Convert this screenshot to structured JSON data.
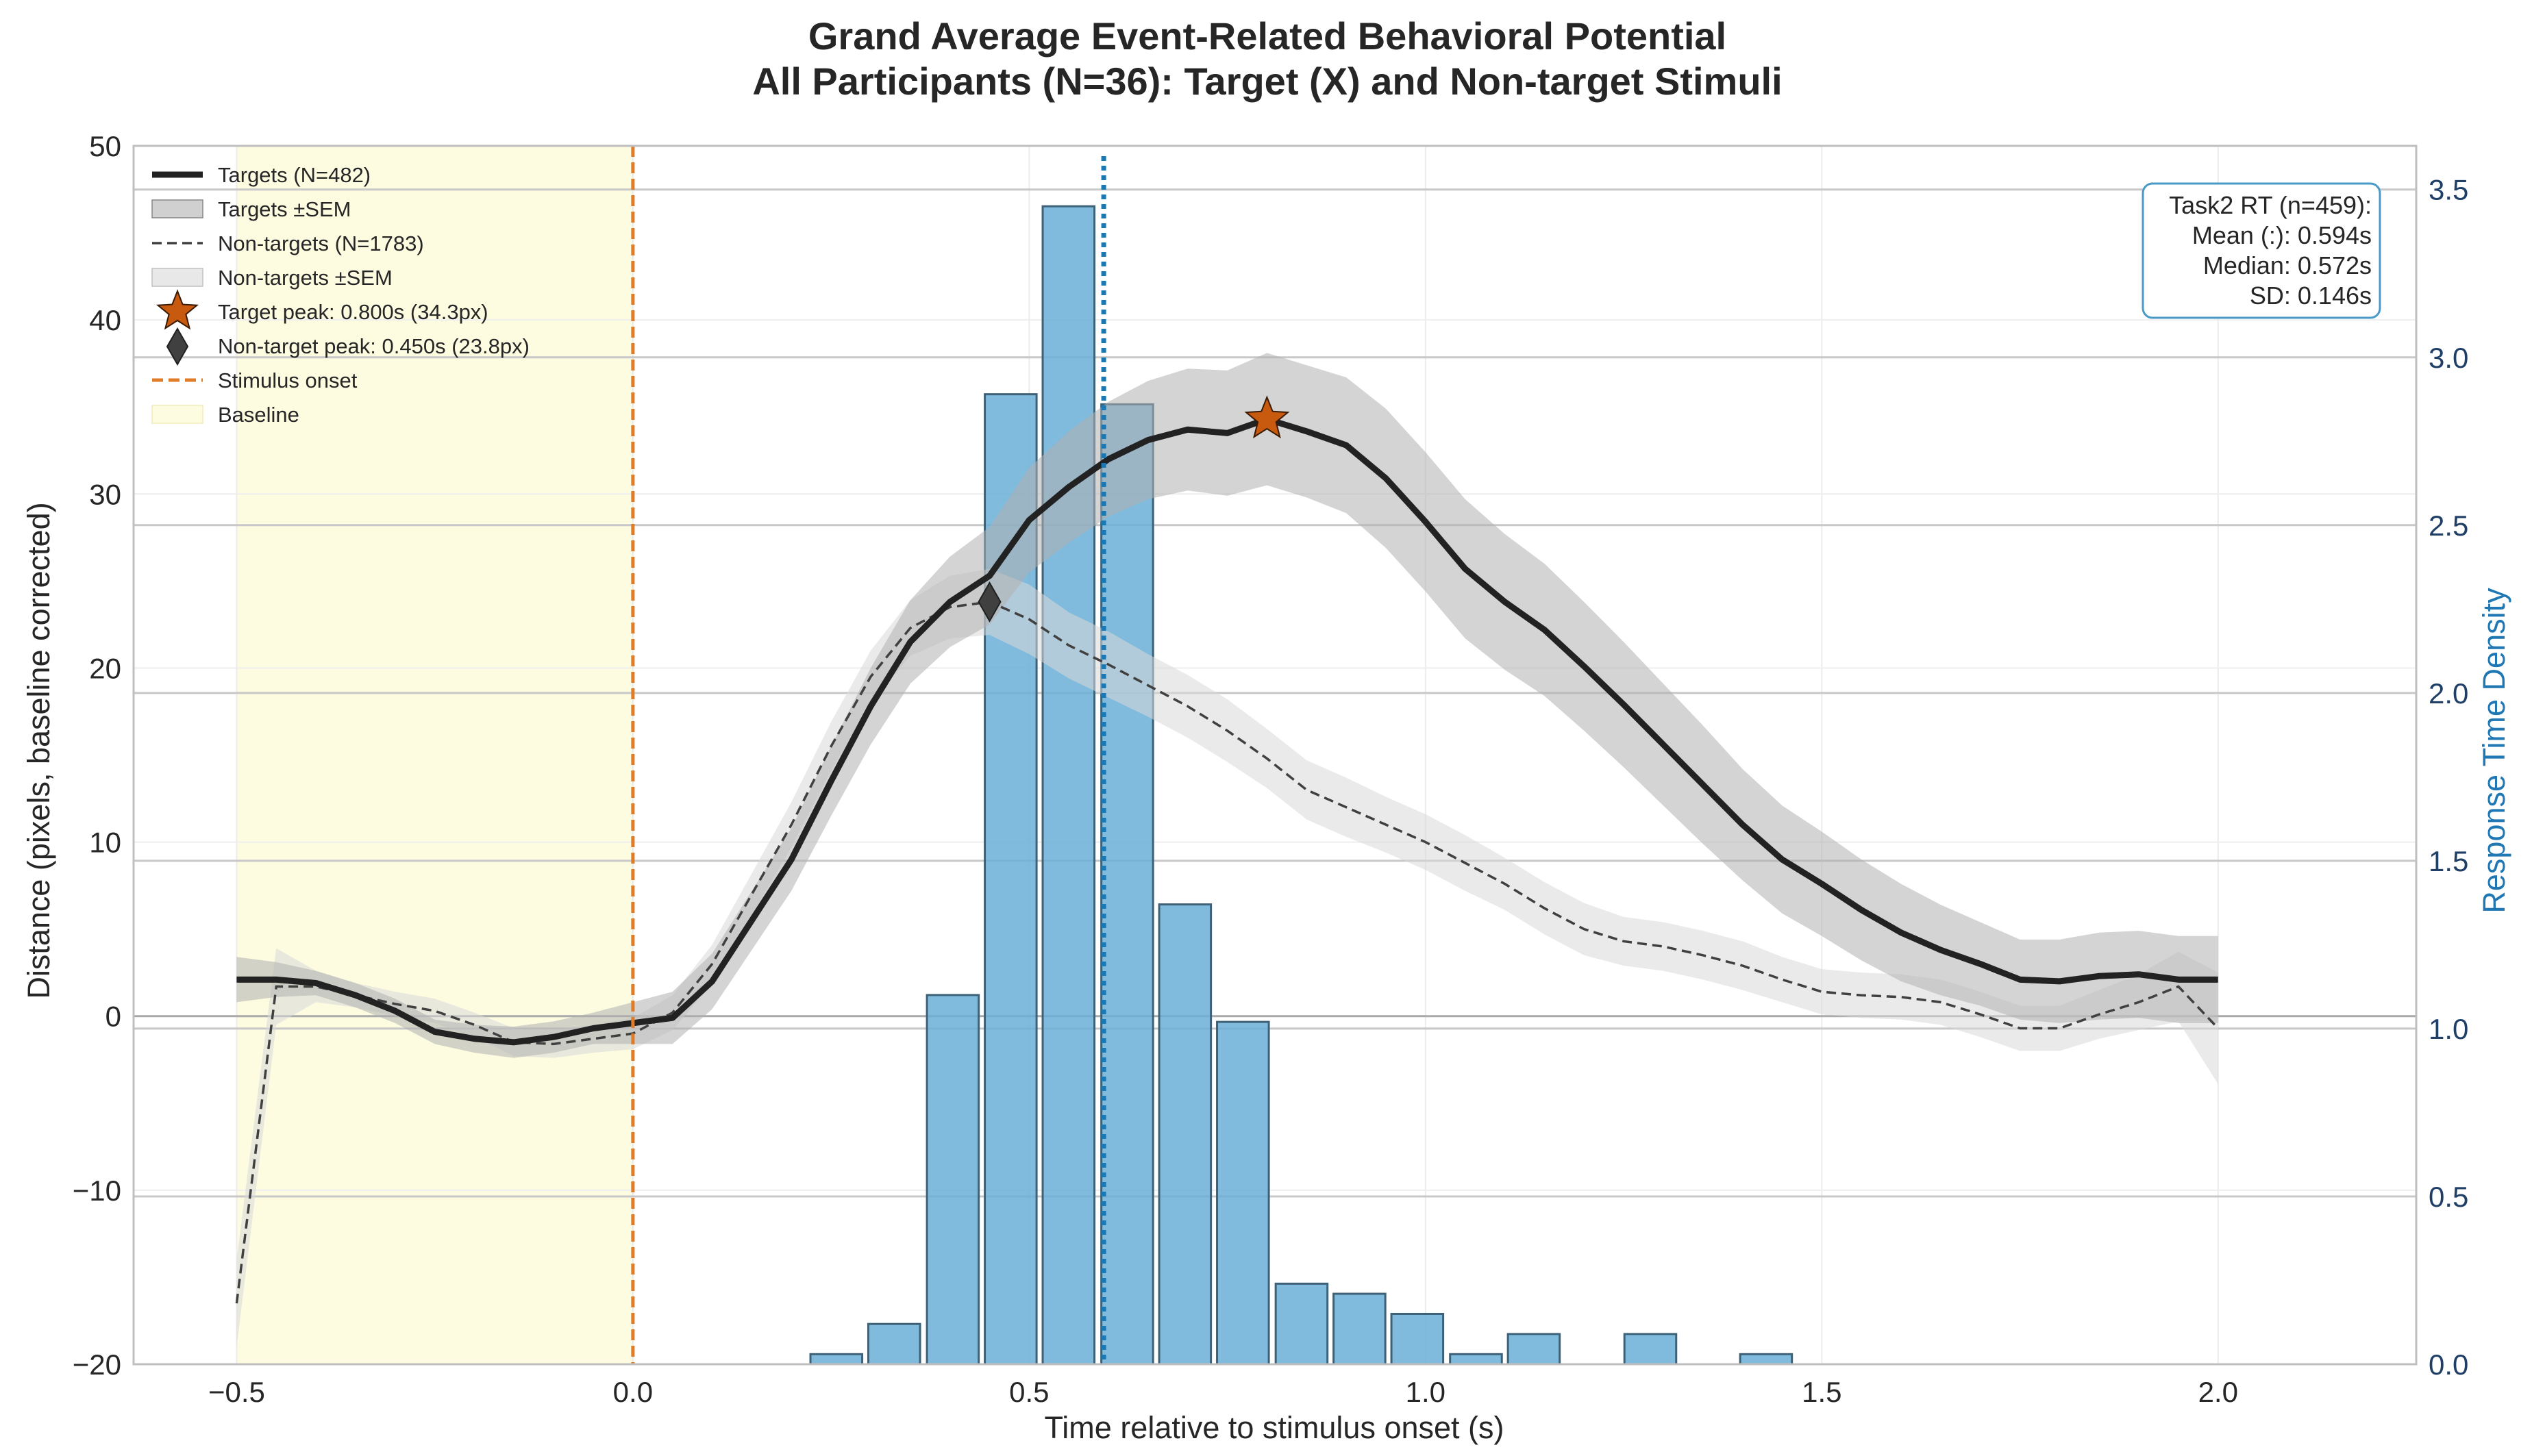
{
  "chart_data": {
    "type": "line",
    "title_line1": "Grand Average Event-Related Behavioral Potential",
    "title_line2": "All Participants (N=36): Target (X) and Non-target Stimuli",
    "xlabel": "Time relative to stimulus onset (s)",
    "ylabel": "Distance (pixels, baseline corrected)",
    "y2label": "Response Time Density",
    "xlim": [
      -0.63,
      2.25
    ],
    "ylim": [
      -20,
      50
    ],
    "y2lim": [
      0,
      3.63
    ],
    "xticks": [
      -0.5,
      0.0,
      0.5,
      1.0,
      1.5,
      2.0
    ],
    "xtick_labels": [
      "−0.5",
      "0.0",
      "0.5",
      "1.0",
      "1.5",
      "2.0"
    ],
    "yticks": [
      -20,
      -10,
      0,
      10,
      20,
      30,
      40,
      50
    ],
    "ytick_labels": [
      "−20",
      "−10",
      "0",
      "10",
      "20",
      "30",
      "40",
      "50"
    ],
    "y2ticks": [
      0,
      0.5,
      1.0,
      1.5,
      2.0,
      2.5,
      3.0,
      3.5
    ],
    "y2tick_labels": [
      "0.0",
      "0.5",
      "1.0",
      "1.5",
      "2.0",
      "2.5",
      "3.0",
      "3.5"
    ],
    "baseline_region": [
      -0.5,
      0.0
    ],
    "stimulus_onset": 0.0,
    "rt_mean_line": 0.594,
    "colors": {
      "target": "#222222",
      "target_sem": "#b0b0b0",
      "nontarget": "#404040",
      "nontarget_sem": "#d9d9d9",
      "onset": "#e07b28",
      "baseline": "#fdfbe0",
      "hist": "#6aaed6",
      "hist_edge": "#3d6278",
      "rt_line": "#1a78b4",
      "star": "#c85a10",
      "diamond": "#404040",
      "stats_border": "#4a9ac8",
      "grid": "#cccccc"
    },
    "target_series": {
      "name": "Targets (N=482)",
      "x": [
        -0.5,
        -0.45,
        -0.4,
        -0.35,
        -0.3,
        -0.25,
        -0.2,
        -0.15,
        -0.1,
        -0.05,
        0.0,
        0.05,
        0.1,
        0.15,
        0.2,
        0.25,
        0.3,
        0.35,
        0.4,
        0.45,
        0.5,
        0.55,
        0.6,
        0.65,
        0.7,
        0.75,
        0.8,
        0.85,
        0.9,
        0.95,
        1.0,
        1.05,
        1.1,
        1.15,
        1.2,
        1.25,
        1.3,
        1.35,
        1.4,
        1.45,
        1.5,
        1.55,
        1.6,
        1.65,
        1.7,
        1.75,
        1.8,
        1.85,
        1.9,
        1.95,
        2.0
      ],
      "y": [
        2.1,
        2.1,
        1.9,
        1.2,
        0.3,
        -0.9,
        -1.3,
        -1.5,
        -1.2,
        -0.7,
        -0.4,
        -0.1,
        2.0,
        5.5,
        9.0,
        13.5,
        17.8,
        21.5,
        23.8,
        25.3,
        28.5,
        30.4,
        32.0,
        33.1,
        33.7,
        33.5,
        34.3,
        33.6,
        32.8,
        30.9,
        28.4,
        25.7,
        23.8,
        22.2,
        20.1,
        17.9,
        15.6,
        13.3,
        11.0,
        9.0,
        7.6,
        6.1,
        4.8,
        3.8,
        3.0,
        2.1,
        2.0,
        2.3,
        2.4,
        2.1,
        2.1
      ],
      "sem": [
        1.3,
        1.0,
        0.7,
        0.7,
        0.7,
        0.7,
        0.8,
        0.9,
        0.9,
        0.9,
        1.2,
        1.5,
        1.6,
        1.7,
        1.8,
        2.0,
        2.2,
        2.4,
        2.6,
        2.8,
        3.0,
        3.2,
        3.3,
        3.4,
        3.5,
        3.6,
        3.8,
        3.8,
        3.9,
        4.0,
        4.0,
        4.0,
        3.9,
        3.8,
        3.7,
        3.6,
        3.5,
        3.4,
        3.2,
        3.1,
        3.0,
        2.9,
        2.8,
        2.6,
        2.4,
        2.3,
        2.4,
        2.5,
        2.5,
        2.5,
        2.5
      ]
    },
    "nontarget_series": {
      "name": "Non-targets (N=1783)",
      "x": [
        -0.5,
        -0.45,
        -0.4,
        -0.35,
        -0.3,
        -0.25,
        -0.2,
        -0.15,
        -0.1,
        -0.05,
        0.0,
        0.05,
        0.1,
        0.15,
        0.2,
        0.25,
        0.3,
        0.35,
        0.4,
        0.45,
        0.5,
        0.55,
        0.6,
        0.65,
        0.7,
        0.75,
        0.8,
        0.85,
        0.9,
        0.95,
        1.0,
        1.05,
        1.1,
        1.15,
        1.2,
        1.25,
        1.3,
        1.35,
        1.4,
        1.45,
        1.5,
        1.55,
        1.6,
        1.65,
        1.7,
        1.75,
        1.8,
        1.85,
        1.9,
        1.95,
        2.0
      ],
      "y": [
        -16.5,
        1.7,
        1.7,
        1.2,
        0.7,
        0.3,
        -0.5,
        -1.5,
        -1.6,
        -1.3,
        -1.0,
        0.2,
        3.0,
        7.0,
        11.0,
        15.5,
        19.5,
        22.3,
        23.5,
        23.8,
        22.8,
        21.3,
        20.2,
        19.0,
        17.8,
        16.4,
        14.8,
        13.0,
        12.0,
        11.0,
        10.0,
        8.8,
        7.6,
        6.2,
        5.0,
        4.3,
        4.0,
        3.5,
        2.9,
        2.1,
        1.4,
        1.2,
        1.1,
        0.8,
        0.1,
        -0.7,
        -0.7,
        0.1,
        0.8,
        1.7,
        -0.7
      ],
      "sem": [
        2.5,
        2.2,
        0.9,
        0.7,
        0.7,
        0.7,
        0.7,
        0.8,
        0.8,
        0.8,
        0.9,
        1.0,
        1.1,
        1.2,
        1.3,
        1.4,
        1.5,
        1.6,
        1.8,
        1.9,
        2.0,
        1.9,
        1.9,
        1.8,
        1.8,
        1.8,
        1.7,
        1.7,
        1.7,
        1.6,
        1.6,
        1.6,
        1.5,
        1.5,
        1.5,
        1.4,
        1.4,
        1.4,
        1.4,
        1.3,
        1.3,
        1.3,
        1.3,
        1.3,
        1.3,
        1.3,
        1.3,
        1.4,
        1.6,
        2.0,
        3.2
      ]
    },
    "target_peak": {
      "x": 0.8,
      "y": 34.3,
      "label": "Target peak: 0.800s (34.3px)"
    },
    "nontarget_peak": {
      "x": 0.45,
      "y": 23.8,
      "label": "Non-target peak: 0.450s (23.8px)"
    },
    "histogram": {
      "bin_width": 0.0733,
      "bins_start": [
        0.22,
        0.293,
        0.367,
        0.44,
        0.513,
        0.587,
        0.66,
        0.733,
        0.807,
        0.88,
        0.953,
        1.027,
        1.1,
        1.173,
        1.247,
        1.32,
        1.393,
        1.467
      ],
      "density": [
        0.03,
        0.12,
        1.1,
        2.89,
        3.45,
        2.86,
        1.37,
        1.02,
        0.24,
        0.21,
        0.15,
        0.03,
        0.09,
        0.0,
        0.09,
        0.0,
        0.03,
        0.0
      ]
    },
    "legend": {
      "targets": "Targets (N=482)",
      "targets_sem": "Targets ±SEM",
      "nontargets": "Non-targets (N=1783)",
      "nontargets_sem": "Non-targets ±SEM",
      "target_peak": "Target peak: 0.800s (34.3px)",
      "nontarget_peak": "Non-target peak: 0.450s (23.8px)",
      "onset": "Stimulus onset",
      "baseline": "Baseline"
    },
    "stats_box": {
      "line1": "Task2 RT (n=459):",
      "line2": "Mean (:): 0.594s",
      "line3": "Median: 0.572s",
      "line4": "SD: 0.146s"
    }
  }
}
